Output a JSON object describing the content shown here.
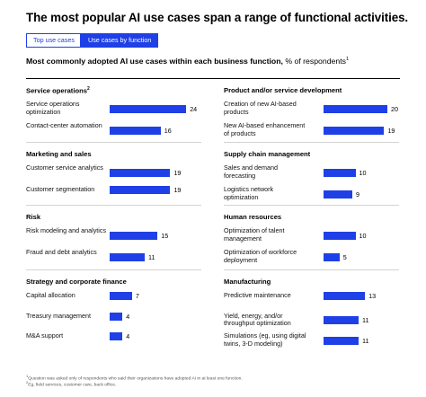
{
  "title": "The most popular AI use cases span a range of functional activities.",
  "tabs": [
    {
      "label": "Top use cases",
      "active": false
    },
    {
      "label": "Use cases by function",
      "active": true
    }
  ],
  "subtitle": {
    "strong": "Most commonly adopted AI use cases within each business function,",
    "regular": " % of respondents",
    "note": "1"
  },
  "colors": {
    "bar": "#1f40e6",
    "accent": "#1f40e6"
  },
  "chart_data": [
    {
      "type": "bar",
      "title": "Service operations",
      "title_note": "2",
      "categories": [
        "Service operations optimization",
        "Contact-center automation"
      ],
      "values": [
        24,
        16
      ]
    },
    {
      "type": "bar",
      "title": "Product and/or service development",
      "categories": [
        "Creation of new AI-based products",
        "New AI-based enhancement of products"
      ],
      "values": [
        20,
        19
      ]
    },
    {
      "type": "bar",
      "title": "Marketing and sales",
      "categories": [
        "Customer service analytics",
        "Customer segmentation"
      ],
      "values": [
        19,
        19
      ]
    },
    {
      "type": "bar",
      "title": "Supply chain management",
      "categories": [
        "Sales and demand forecasting",
        "Logistics network optimization"
      ],
      "values": [
        10,
        9
      ]
    },
    {
      "type": "bar",
      "title": "Risk",
      "categories": [
        "Risk modeling and analytics",
        "Fraud and debt analytics"
      ],
      "values": [
        15,
        11
      ]
    },
    {
      "type": "bar",
      "title": "Human resources",
      "categories": [
        "Optimization of talent management",
        "Optimization of workforce deployment"
      ],
      "values": [
        10,
        5
      ]
    },
    {
      "type": "bar",
      "title": "Strategy and corporate finance",
      "categories": [
        "Capital allocation",
        "Treasury management",
        "M&A support"
      ],
      "values": [
        7,
        4,
        4
      ]
    },
    {
      "type": "bar",
      "title": "Manufacturing",
      "categories": [
        "Predictive maintenance",
        "Yield, energy, and/or throughput optimization",
        "Simulations (eg, using digital twins, 3-D modeling)"
      ],
      "values": [
        13,
        11,
        11
      ]
    }
  ],
  "footnotes": [
    {
      "mark": "1",
      "text": "Question was asked only of respondents who said their organizations have adopted AI in at least one function."
    },
    {
      "mark": "2",
      "text": "Eg, field services, customer care, back office."
    }
  ]
}
